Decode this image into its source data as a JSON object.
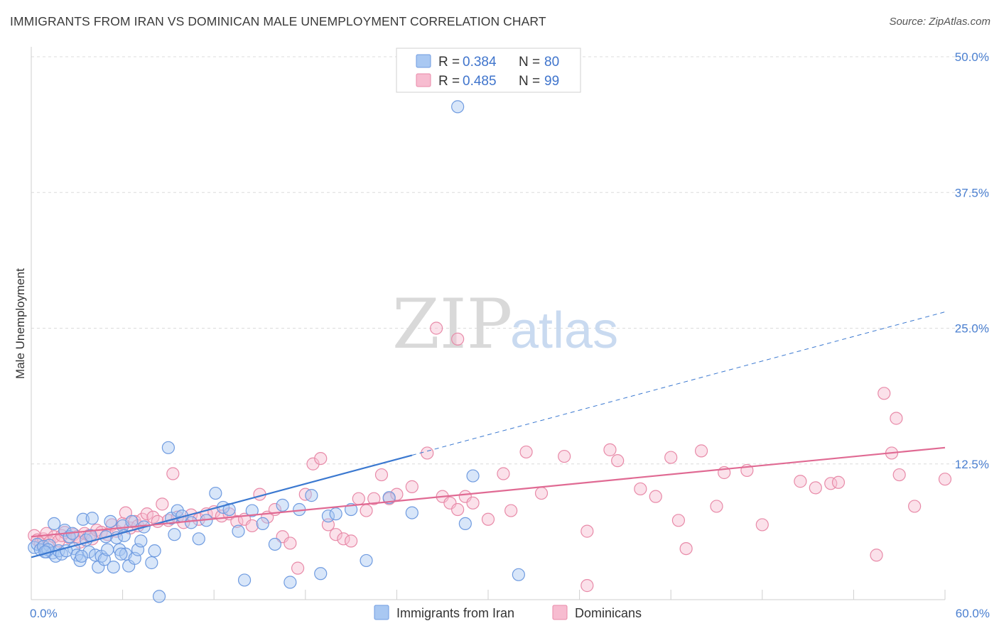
{
  "title": "IMMIGRANTS FROM IRAN VS DOMINICAN MALE UNEMPLOYMENT CORRELATION CHART",
  "source": "Source: ZipAtlas.com",
  "watermark": {
    "zip": "ZIP",
    "atlas": "atlas"
  },
  "legend": {
    "rows": [
      {
        "r_label": "R = ",
        "r_value": "0.384",
        "n_label": "N = ",
        "n_value": "80",
        "color": "#a9c8f2",
        "stroke": "#6f9be0"
      },
      {
        "r_label": "R = ",
        "r_value": "0.485",
        "n_label": "N = ",
        "n_value": "99",
        "color": "#f7bcd0",
        "stroke": "#e88aa8"
      }
    ]
  },
  "bottom_legend": [
    {
      "label": "Immigrants from Iran",
      "color": "#a9c8f2",
      "stroke": "#6f9be0"
    },
    {
      "label": "Dominicans",
      "color": "#f7bcd0",
      "stroke": "#e88aa8"
    }
  ],
  "chart_data": {
    "type": "scatter",
    "title": "IMMIGRANTS FROM IRAN VS DOMINICAN MALE UNEMPLOYMENT CORRELATION CHART",
    "xlabel": "",
    "ylabel": "Male Unemployment",
    "xlim": [
      0,
      60
    ],
    "ylim": [
      0,
      50
    ],
    "x_tick_labels": [
      {
        "value": 0,
        "label": "0.0%"
      },
      {
        "value": 60,
        "label": "60.0%"
      }
    ],
    "y_tick_labels": [
      {
        "value": 12.5,
        "label": "12.5%"
      },
      {
        "value": 25,
        "label": "25.0%"
      },
      {
        "value": 37.5,
        "label": "37.5%"
      },
      {
        "value": 50,
        "label": "50.0%"
      }
    ],
    "grid": true,
    "legend_position": "top-center",
    "series": [
      {
        "name": "Immigrants from Iran",
        "color": "#6f9be0",
        "fill": "#a9c8f2",
        "trend": {
          "x": [
            0,
            25
          ],
          "y": [
            3.9,
            13.3
          ],
          "dashed_extension": {
            "x": [
              25,
              60
            ],
            "y": [
              13.3,
              26.5
            ]
          },
          "color": "#3a78d0"
        },
        "points": [
          [
            0.2,
            4.8
          ],
          [
            0.4,
            5.1
          ],
          [
            0.6,
            4.6
          ],
          [
            0.8,
            4.9
          ],
          [
            1.0,
            4.4
          ],
          [
            1.2,
            5.0
          ],
          [
            1.4,
            4.3
          ],
          [
            1.6,
            4.0
          ],
          [
            1.8,
            4.5
          ],
          [
            2.0,
            4.2
          ],
          [
            1.5,
            7.0
          ],
          [
            2.2,
            6.4
          ],
          [
            2.5,
            5.8
          ],
          [
            2.8,
            4.7
          ],
          [
            3.0,
            4.1
          ],
          [
            3.2,
            3.6
          ],
          [
            3.4,
            7.4
          ],
          [
            3.6,
            5.5
          ],
          [
            3.8,
            4.4
          ],
          [
            4.0,
            7.5
          ],
          [
            4.2,
            4.1
          ],
          [
            4.4,
            3.0
          ],
          [
            4.6,
            4.0
          ],
          [
            4.8,
            3.7
          ],
          [
            5.0,
            4.6
          ],
          [
            5.2,
            7.2
          ],
          [
            5.4,
            3.0
          ],
          [
            5.6,
            5.7
          ],
          [
            5.8,
            4.6
          ],
          [
            6.0,
            6.8
          ],
          [
            6.2,
            4.2
          ],
          [
            6.4,
            3.1
          ],
          [
            6.6,
            7.2
          ],
          [
            6.8,
            3.8
          ],
          [
            7.0,
            4.6
          ],
          [
            7.2,
            5.4
          ],
          [
            7.4,
            6.7
          ],
          [
            8.1,
            4.5
          ],
          [
            8.4,
            0.3
          ],
          [
            9.0,
            14.0
          ],
          [
            9.2,
            7.5
          ],
          [
            9.4,
            6.0
          ],
          [
            9.6,
            8.2
          ],
          [
            10.5,
            7.1
          ],
          [
            11.0,
            5.6
          ],
          [
            11.5,
            7.3
          ],
          [
            12.1,
            9.8
          ],
          [
            12.6,
            8.5
          ],
          [
            13.0,
            8.3
          ],
          [
            13.6,
            6.3
          ],
          [
            14.0,
            1.8
          ],
          [
            14.5,
            8.2
          ],
          [
            15.2,
            7.0
          ],
          [
            16.0,
            5.1
          ],
          [
            16.5,
            8.7
          ],
          [
            17.0,
            1.6
          ],
          [
            17.6,
            8.3
          ],
          [
            18.4,
            9.6
          ],
          [
            19.0,
            2.4
          ],
          [
            19.5,
            7.7
          ],
          [
            20.0,
            7.9
          ],
          [
            21.0,
            8.3
          ],
          [
            22.0,
            3.6
          ],
          [
            23.5,
            9.4
          ],
          [
            25.0,
            8.0
          ],
          [
            28.0,
            45.4
          ],
          [
            28.5,
            7.0
          ],
          [
            29.0,
            11.4
          ],
          [
            32.0,
            2.3
          ],
          [
            5.9,
            4.2
          ],
          [
            3.9,
            5.9
          ],
          [
            6.1,
            5.9
          ],
          [
            2.7,
            6.1
          ],
          [
            1.1,
            4.6
          ],
          [
            0.9,
            4.4
          ],
          [
            7.9,
            3.4
          ],
          [
            4.9,
            5.8
          ],
          [
            9.9,
            7.7
          ],
          [
            2.3,
            4.5
          ],
          [
            3.3,
            4.0
          ]
        ]
      },
      {
        "name": "Dominicans",
        "color": "#e88aa8",
        "fill": "#f7bcd0",
        "trend": {
          "x": [
            0,
            60
          ],
          "y": [
            5.8,
            14.0
          ],
          "color": "#e06a93"
        },
        "points": [
          [
            0.2,
            5.9
          ],
          [
            0.4,
            5.5
          ],
          [
            0.6,
            5.2
          ],
          [
            0.8,
            5.6
          ],
          [
            1.0,
            6.1
          ],
          [
            1.2,
            5.3
          ],
          [
            1.5,
            5.8
          ],
          [
            1.8,
            5.4
          ],
          [
            2.0,
            5.9
          ],
          [
            2.2,
            6.2
          ],
          [
            2.5,
            5.7
          ],
          [
            2.8,
            6.0
          ],
          [
            3.0,
            5.8
          ],
          [
            3.2,
            5.3
          ],
          [
            3.5,
            6.1
          ],
          [
            3.8,
            5.9
          ],
          [
            4.0,
            5.6
          ],
          [
            4.3,
            6.4
          ],
          [
            4.6,
            6.2
          ],
          [
            5.0,
            6.0
          ],
          [
            5.3,
            6.9
          ],
          [
            5.6,
            6.3
          ],
          [
            6.0,
            7.0
          ],
          [
            6.2,
            8.0
          ],
          [
            6.5,
            6.6
          ],
          [
            6.8,
            7.2
          ],
          [
            7.0,
            6.8
          ],
          [
            7.3,
            7.4
          ],
          [
            7.6,
            7.9
          ],
          [
            8.0,
            7.6
          ],
          [
            8.3,
            7.2
          ],
          [
            8.6,
            8.8
          ],
          [
            9.0,
            7.3
          ],
          [
            9.3,
            11.6
          ],
          [
            9.6,
            7.6
          ],
          [
            10.0,
            7.1
          ],
          [
            10.5,
            7.8
          ],
          [
            11.0,
            7.4
          ],
          [
            11.5,
            7.9
          ],
          [
            12.0,
            8.1
          ],
          [
            12.5,
            7.7
          ],
          [
            13.0,
            7.9
          ],
          [
            13.5,
            7.2
          ],
          [
            14.0,
            7.4
          ],
          [
            14.5,
            6.8
          ],
          [
            15.0,
            9.7
          ],
          [
            15.5,
            7.6
          ],
          [
            16.0,
            8.3
          ],
          [
            16.5,
            5.8
          ],
          [
            17.0,
            5.2
          ],
          [
            17.5,
            2.9
          ],
          [
            18.0,
            9.7
          ],
          [
            18.5,
            12.5
          ],
          [
            19.0,
            13.0
          ],
          [
            19.5,
            6.9
          ],
          [
            20.0,
            6.0
          ],
          [
            20.5,
            5.6
          ],
          [
            21.0,
            5.4
          ],
          [
            21.5,
            9.3
          ],
          [
            22.0,
            8.2
          ],
          [
            22.5,
            9.3
          ],
          [
            23.0,
            11.5
          ],
          [
            23.5,
            9.3
          ],
          [
            24.0,
            9.7
          ],
          [
            25.0,
            10.4
          ],
          [
            26.0,
            13.5
          ],
          [
            27.0,
            9.5
          ],
          [
            27.5,
            8.9
          ],
          [
            28.0,
            8.3
          ],
          [
            28.5,
            9.5
          ],
          [
            29.0,
            8.9
          ],
          [
            30.0,
            7.4
          ],
          [
            31.0,
            11.6
          ],
          [
            31.5,
            8.2
          ],
          [
            32.5,
            13.6
          ],
          [
            33.5,
            9.8
          ],
          [
            35.0,
            13.2
          ],
          [
            36.5,
            6.3
          ],
          [
            38.0,
            13.8
          ],
          [
            38.5,
            12.8
          ],
          [
            40.0,
            10.2
          ],
          [
            41.0,
            9.5
          ],
          [
            42.0,
            13.1
          ],
          [
            42.5,
            7.3
          ],
          [
            43.0,
            4.7
          ],
          [
            44.0,
            13.7
          ],
          [
            45.0,
            8.6
          ],
          [
            45.5,
            11.7
          ],
          [
            47.0,
            11.9
          ],
          [
            48.0,
            6.9
          ],
          [
            50.5,
            10.9
          ],
          [
            51.5,
            10.3
          ],
          [
            52.5,
            10.7
          ],
          [
            53.0,
            10.8
          ],
          [
            55.5,
            4.1
          ],
          [
            56.5,
            13.5
          ],
          [
            57.0,
            11.5
          ],
          [
            58.0,
            8.6
          ],
          [
            60.0,
            11.1
          ]
        ],
        "outliers": [
          [
            26.6,
            25.0
          ],
          [
            28.0,
            24.0
          ],
          [
            56.0,
            19.0
          ],
          [
            56.8,
            16.7
          ],
          [
            36.5,
            1.3
          ]
        ]
      }
    ]
  }
}
